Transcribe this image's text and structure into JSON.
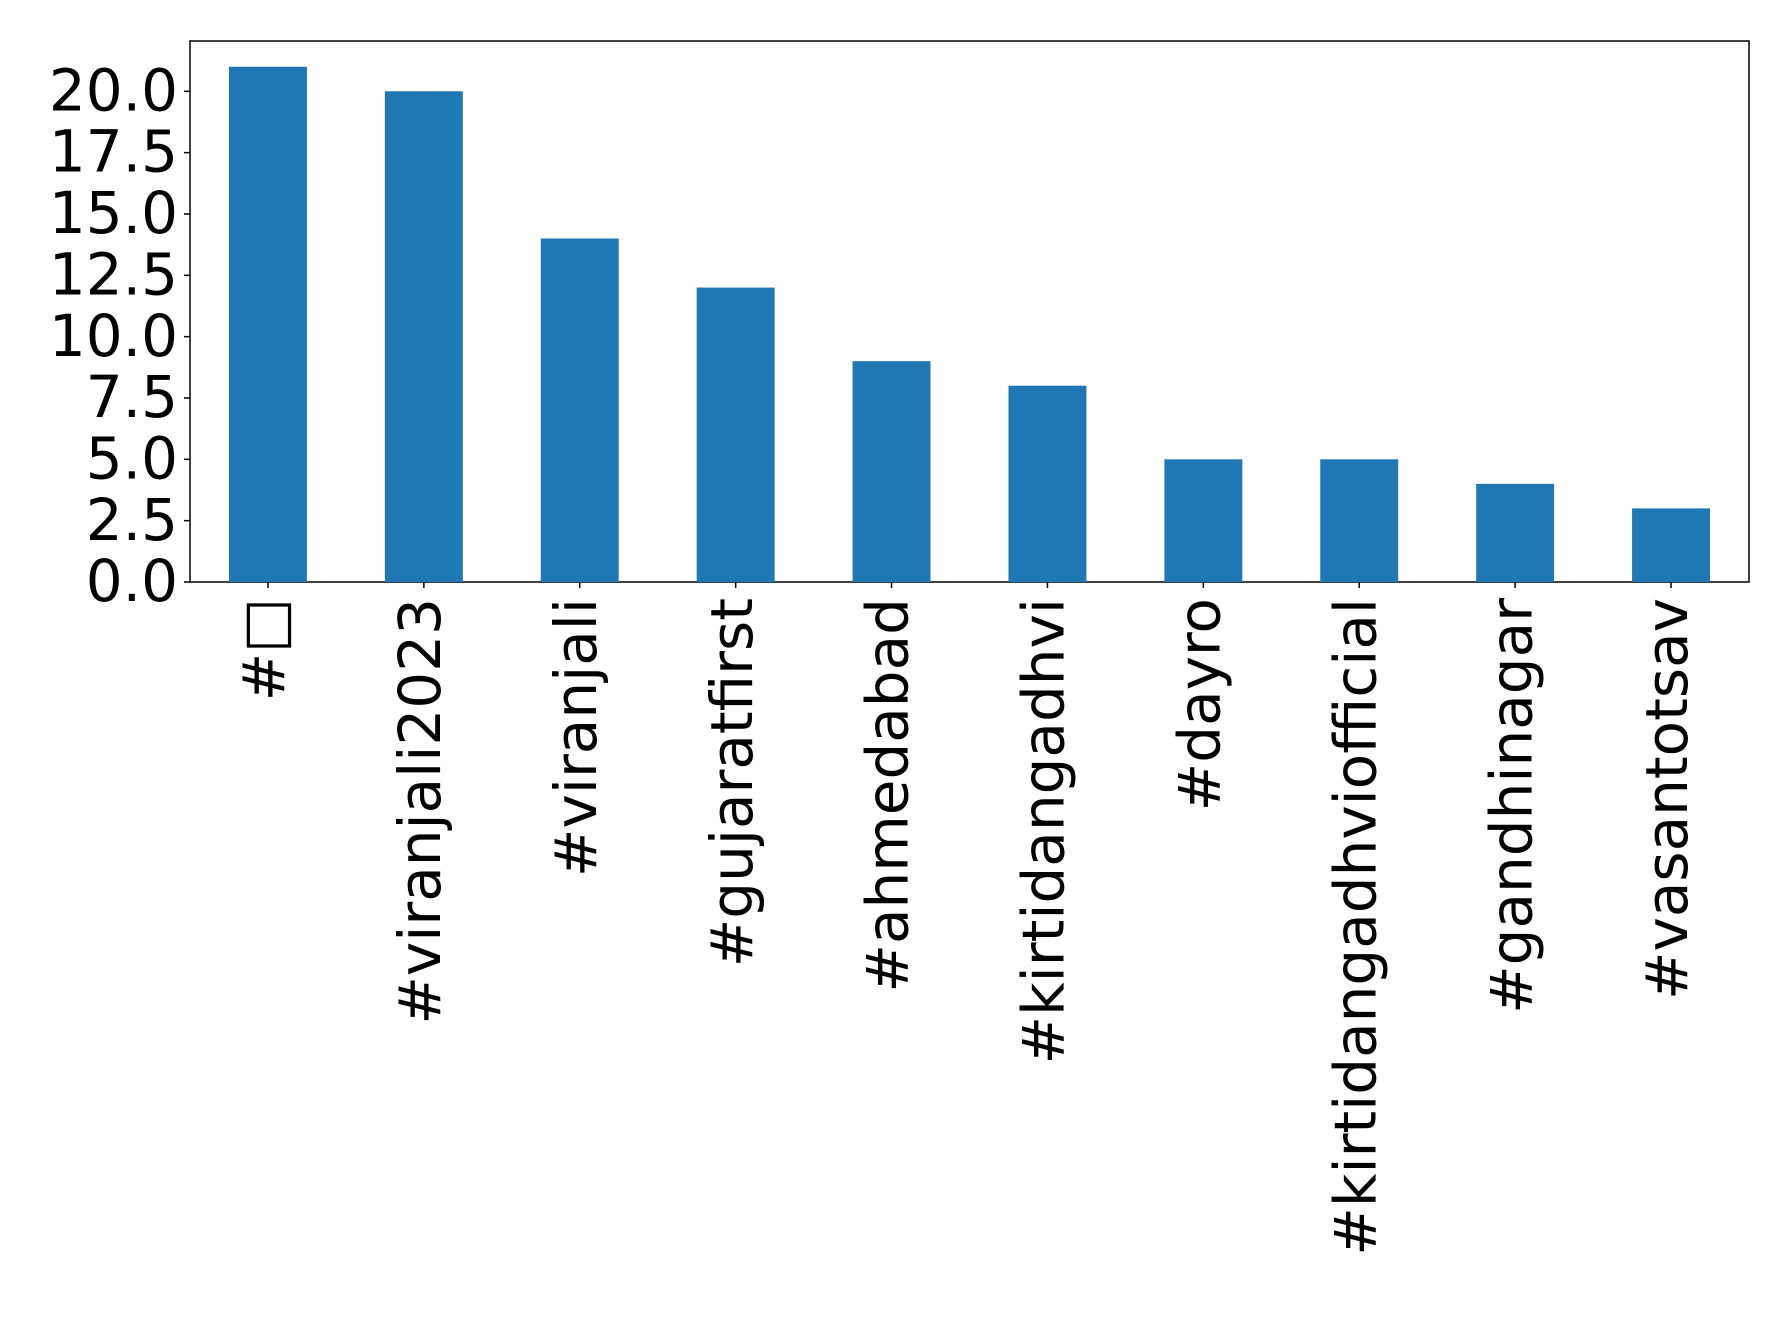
{
  "chart_data": {
    "type": "bar",
    "categories": [
      "#□",
      "#viranjali2023",
      "#viranjali",
      "#gujaratfirst",
      "#ahmedabad",
      "#kirtidangadhvi",
      "#dayro",
      "#kirtidangadhviofficial",
      "#gandhinagar",
      "#vasantotsav"
    ],
    "values": [
      21,
      20,
      14,
      12,
      9,
      8,
      5,
      5,
      4,
      3
    ],
    "color": "#1f77b4",
    "ylim": [
      0,
      22.05
    ],
    "yticks": [
      {
        "value": 0,
        "label": "0.0"
      },
      2.5,
      {
        "value": 5,
        "label": "5.0"
      },
      7.5,
      {
        "value": 10,
        "label": "10.0"
      },
      12.5,
      {
        "value": 15,
        "label": "15.0"
      },
      17.5,
      {
        "value": 20,
        "label": "20.0"
      }
    ],
    "grid": false
  }
}
